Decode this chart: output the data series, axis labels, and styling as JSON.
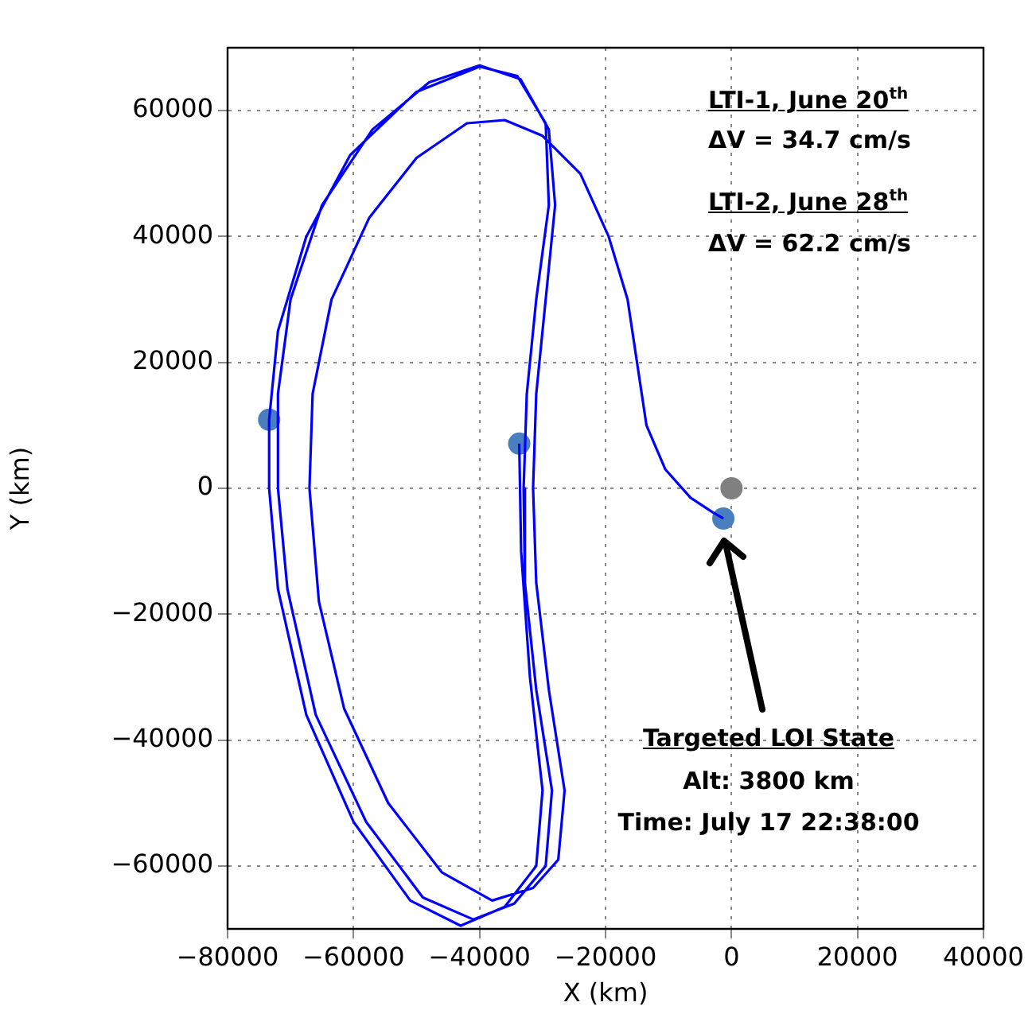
{
  "chart_data": {
    "type": "line",
    "xlabel": "X (km)",
    "ylabel": "Y (km)",
    "xlim": [
      -80000,
      40000
    ],
    "ylim": [
      -70000,
      70000
    ],
    "xticks": [
      {
        "value": -80000,
        "label": "−80000"
      },
      {
        "value": -60000,
        "label": "−60000"
      },
      {
        "value": -40000,
        "label": "−40000"
      },
      {
        "value": -20000,
        "label": "−20000"
      },
      0,
      20000,
      40000
    ],
    "yticks": [
      {
        "value": -60000,
        "label": "−60000"
      },
      {
        "value": -40000,
        "label": "−40000"
      },
      {
        "value": -20000,
        "label": "−20000"
      },
      0,
      20000,
      40000,
      60000
    ],
    "grid": true,
    "legend": false,
    "annotations": [
      "LTI-1, June 20$^{th}$",
      "ΔV = 34.7 cm/s",
      "LTI-2, June 28$^{th}$",
      "ΔV = 62.2 cm/s",
      "Targeted LOI State",
      "Alt: 3800 km",
      "Time: July 17 22:38:00"
    ],
    "series": [
      {
        "type": "line",
        "color": "#0000ff",
        "line_style": "solid",
        "x": [
          -33700,
          -33400,
          -32000,
          -30000,
          -31000,
          -36000,
          -43000,
          -51000,
          -60000,
          -67500,
          -72000,
          -73400,
          -73400,
          -72000,
          -67500,
          -60500,
          -50000,
          -40000,
          -34000,
          -29500,
          -29000,
          -31000,
          -32500,
          -33000,
          -32800,
          -31000,
          -28500,
          -29500,
          -34500,
          -41000,
          -49000,
          -58000,
          -66000,
          -70500,
          -72000,
          -72000,
          -70000,
          -65000,
          -57000,
          -48000,
          -40000,
          -33500,
          -29000,
          -28000,
          -29500,
          -31000,
          -31500,
          -31000,
          -29000,
          -26500,
          -27500,
          -31500,
          -38000,
          -46000,
          -54500,
          -61500,
          -65500,
          -67000,
          -66500,
          -63500,
          -57500,
          -50000,
          -42000,
          -36000,
          -30000,
          -24000,
          -19500,
          -16500,
          -15000,
          -13500,
          -10500,
          -6500,
          -3000,
          -1300
        ],
        "values": [
          7100,
          -10000,
          -30000,
          -48000,
          -60000,
          -66500,
          -69500,
          -65500,
          -53000,
          -36000,
          -16000,
          0,
          10900,
          25000,
          40000,
          53000,
          63000,
          67000,
          65500,
          58000,
          45000,
          30000,
          15000,
          0,
          -15000,
          -32000,
          -48000,
          -60000,
          -66000,
          -68500,
          -65000,
          -53000,
          -36000,
          -16000,
          0,
          15000,
          30000,
          45000,
          57000,
          64500,
          67200,
          65000,
          57000,
          45000,
          30000,
          15000,
          0,
          -15000,
          -32000,
          -48000,
          -59000,
          -63500,
          -65500,
          -61000,
          -50000,
          -35000,
          -18000,
          0,
          15000,
          30000,
          43000,
          52500,
          58000,
          58500,
          56000,
          50000,
          40000,
          30000,
          20000,
          10000,
          3000,
          -1500,
          -3800,
          -4800
        ]
      },
      {
        "type": "scatter",
        "color": "#808080",
        "marker": "circle",
        "x": [
          0
        ],
        "values": [
          0
        ]
      },
      {
        "type": "scatter",
        "color": "#4a7fbf",
        "marker": "circle",
        "x": [
          -73400,
          -33700,
          -1300
        ],
        "values": [
          10900,
          7100,
          -4800
        ]
      }
    ]
  }
}
